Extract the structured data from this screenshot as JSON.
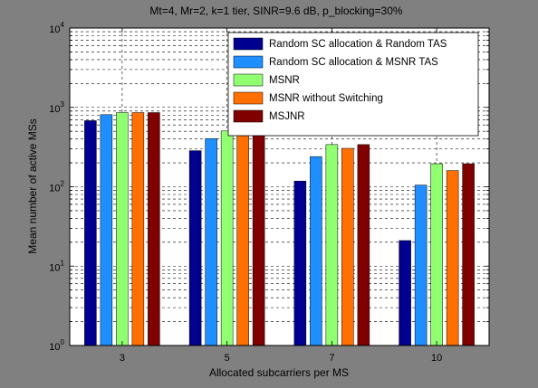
{
  "chart_data": {
    "type": "bar",
    "title": "Mt=4, Mr=2, k=1 tier, SINR=9.6 dB, p_blocking=30%",
    "xlabel": "Allocated subcarriers per MS",
    "ylabel": "Mean number of active MSs",
    "yscale": "log",
    "ylim": [
      1,
      10000
    ],
    "ytick_labels": [
      {
        "base": "10",
        "exp": "0"
      },
      {
        "base": "10",
        "exp": "1"
      },
      {
        "base": "10",
        "exp": "2"
      },
      {
        "base": "10",
        "exp": "3"
      },
      {
        "base": "10",
        "exp": "4"
      }
    ],
    "categories": [
      "3",
      "5",
      "7",
      "10"
    ],
    "grid": "dashed major and minor",
    "legend_position": "top-right",
    "series": [
      {
        "name": "Random SC allocation & Random TAS",
        "color": "#000090",
        "values": [
          680,
          285,
          118,
          21
        ]
      },
      {
        "name": "Random SC allocation & MSNR TAS",
        "color": "#1f8fff",
        "values": [
          810,
          405,
          240,
          105
        ]
      },
      {
        "name": "MSNR",
        "color": "#90ff70",
        "values": [
          860,
          505,
          340,
          195
        ]
      },
      {
        "name": "MSNR without Switching",
        "color": "#ff7000",
        "values": [
          860,
          470,
          305,
          160
        ]
      },
      {
        "name": "MSJNR",
        "color": "#800000",
        "values": [
          860,
          500,
          340,
          195
        ]
      }
    ]
  }
}
